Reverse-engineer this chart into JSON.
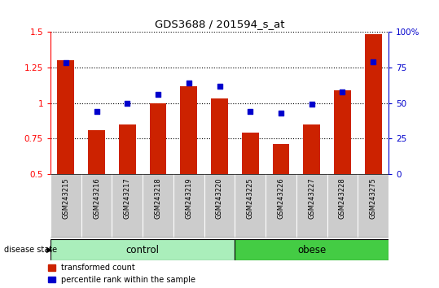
{
  "title": "GDS3688 / 201594_s_at",
  "samples": [
    "GSM243215",
    "GSM243216",
    "GSM243217",
    "GSM243218",
    "GSM243219",
    "GSM243220",
    "GSM243225",
    "GSM243226",
    "GSM243227",
    "GSM243228",
    "GSM243275"
  ],
  "red_values": [
    1.3,
    0.81,
    0.85,
    1.0,
    1.12,
    1.03,
    0.79,
    0.71,
    0.85,
    1.09,
    1.48
  ],
  "blue_pct": [
    78,
    44,
    50,
    56,
    64,
    62,
    44,
    43,
    49,
    58,
    79
  ],
  "ylim_left": [
    0.5,
    1.5
  ],
  "ylim_right": [
    0,
    100
  ],
  "yticks_left": [
    0.5,
    0.75,
    1.0,
    1.25,
    1.5
  ],
  "ytick_labels_left": [
    "0.5",
    "0.75",
    "1",
    "1.25",
    "1.5"
  ],
  "yticks_right": [
    0,
    25,
    50,
    75,
    100
  ],
  "ytick_labels_right": [
    "0",
    "25",
    "50",
    "75",
    "100%"
  ],
  "bar_color": "#CC2200",
  "dot_color": "#0000CC",
  "bar_bottom": 0.5,
  "ctrl_color": "#AAEEBB",
  "obese_color": "#44CC44",
  "label_bg": "#CCCCCC",
  "n_control": 6,
  "n_obese": 5
}
